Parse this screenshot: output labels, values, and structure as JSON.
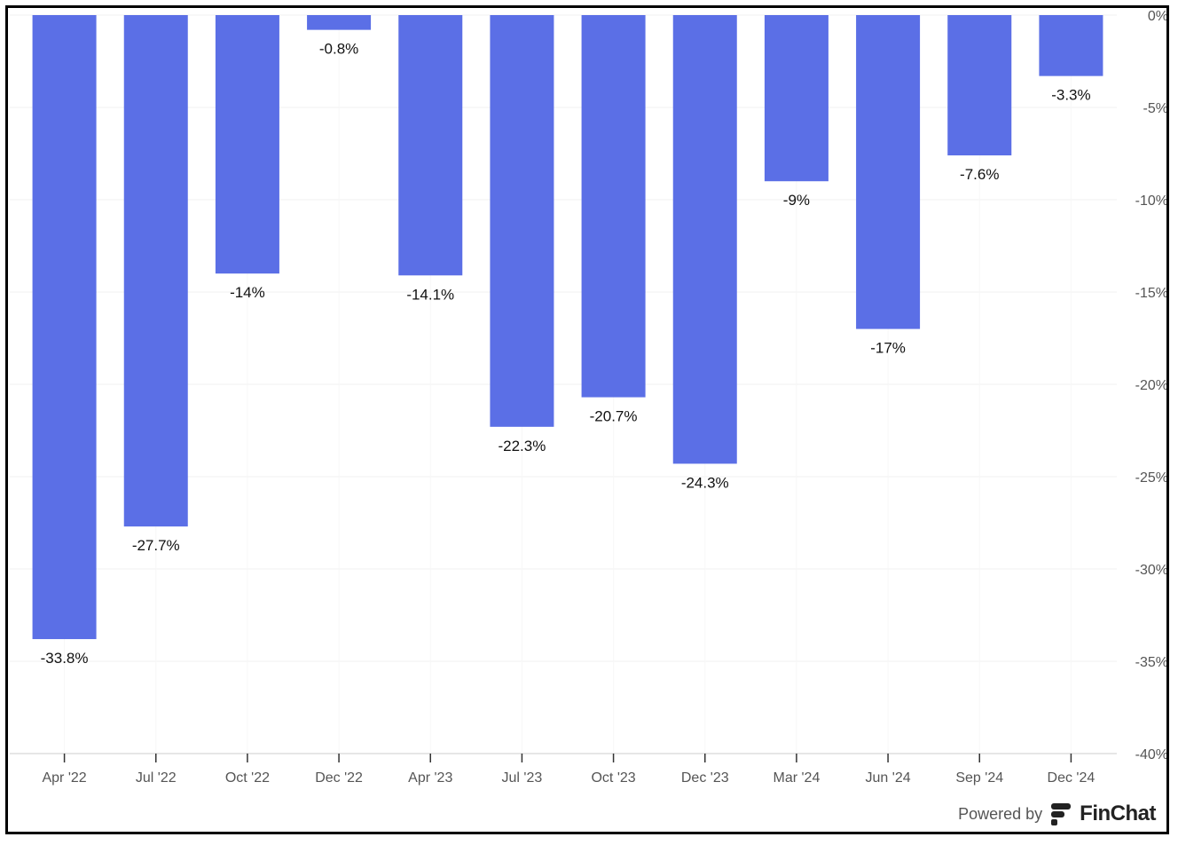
{
  "chart_data": {
    "type": "bar",
    "categories": [
      "Apr '22",
      "Jul '22",
      "Oct '22",
      "Dec '22",
      "Apr '23",
      "Jul '23",
      "Oct '23",
      "Dec '23",
      "Mar '24",
      "Jun '24",
      "Sep '24",
      "Dec '24"
    ],
    "values": [
      -33.8,
      -27.7,
      -14,
      -0.8,
      -14.1,
      -22.3,
      -20.7,
      -24.3,
      -9,
      -17,
      -7.6,
      -3.3
    ],
    "data_labels": [
      "-33.8%",
      "-27.7%",
      "-14%",
      "-0.8%",
      "-14.1%",
      "-22.3%",
      "-20.7%",
      "-24.3%",
      "-9%",
      "-17%",
      "-7.6%",
      "-3.3%"
    ],
    "ylim": [
      -40,
      0
    ],
    "yticks": [
      0,
      -5,
      -10,
      -15,
      -20,
      -25,
      -30,
      -35,
      -40
    ],
    "ytick_labels": [
      "0%",
      "-5%",
      "-10%",
      "-15%",
      "-20%",
      "-25%",
      "-30%",
      "-35%",
      "-40%"
    ],
    "y_axis_position": "right",
    "grid": true,
    "bar_color": "#5b6fe6",
    "title": "",
    "xlabel": "",
    "ylabel": ""
  },
  "branding": {
    "powered_by": "Powered by",
    "brand_name": "FinChat",
    "logo_icon": "finchat-logo-icon"
  }
}
